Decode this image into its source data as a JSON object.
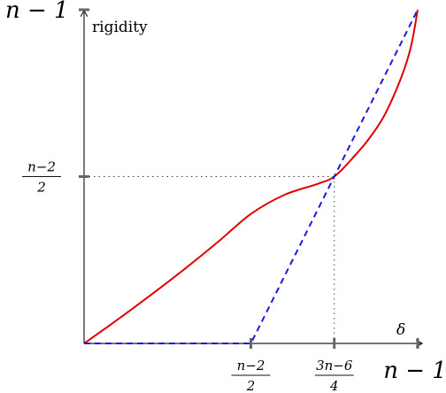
{
  "chart_data": {
    "type": "line",
    "xlabel": "δ",
    "ylabel": "rigidity",
    "xlim": [
      0,
      1
    ],
    "ylim": [
      0,
      1
    ],
    "x_ticks": [
      {
        "value": 0.5,
        "num": "n−2",
        "den": "2"
      },
      {
        "value": 0.75,
        "num": "3n−6",
        "den": "4"
      },
      {
        "value": 1.0,
        "text": "n − 1"
      }
    ],
    "y_ticks": [
      {
        "value": 0.5,
        "num": "n−2",
        "den": "2"
      },
      {
        "value": 1.0,
        "text": "n − 1"
      }
    ],
    "reference_lines": [
      {
        "orientation": "horizontal",
        "value": 0.5,
        "style": "dotted"
      },
      {
        "orientation": "vertical",
        "value": 0.75,
        "style": "dotted"
      }
    ],
    "series": [
      {
        "style": "solid",
        "color": "#e00000",
        "x": [
          0,
          0.1,
          0.2,
          0.3,
          0.4,
          0.5,
          0.6,
          0.7,
          0.75,
          0.8,
          0.85,
          0.9,
          0.95,
          0.98,
          1.0
        ],
        "y": [
          0,
          0.071,
          0.145,
          0.222,
          0.303,
          0.388,
          0.445,
          0.478,
          0.5,
          0.55,
          0.608,
          0.683,
          0.795,
          0.89,
          1.0
        ]
      },
      {
        "style": "dashed",
        "color": "#1a1adb",
        "x": [
          0,
          0.5,
          0.75,
          1.0
        ],
        "y": [
          0,
          0,
          0.5,
          1.0
        ]
      }
    ]
  }
}
